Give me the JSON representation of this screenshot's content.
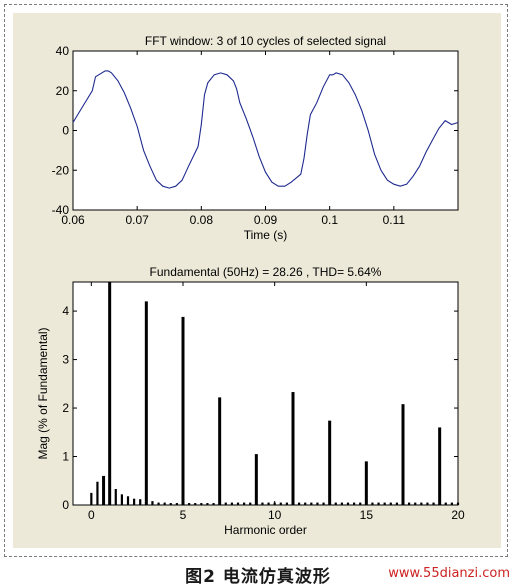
{
  "caption": "图2 电流仿真波形",
  "watermark": "www.55dianzi.com",
  "chart_data": [
    {
      "type": "line",
      "title": "FFT window: 3 of 10 cycles of selected signal",
      "xlabel": "Time (s)",
      "ylabel": "",
      "xlim": [
        0.06,
        0.12
      ],
      "ylim": [
        -40,
        40
      ],
      "xticks": [
        0.06,
        0.07,
        0.08,
        0.09,
        0.1,
        0.11
      ],
      "xtick_labels": [
        "0.06",
        "0.07",
        "0.08",
        "0.09",
        "0.1",
        "0.11"
      ],
      "yticks": [
        -40,
        -20,
        0,
        20,
        40
      ],
      "ytick_labels": [
        "-40",
        "-20",
        "0",
        "20",
        "40"
      ],
      "series": [
        {
          "color": "#1f2a8f",
          "x": [
            0.06,
            0.0615,
            0.063,
            0.0635,
            0.064,
            0.065,
            0.0655,
            0.066,
            0.067,
            0.068,
            0.069,
            0.07,
            0.0705,
            0.071,
            0.072,
            0.073,
            0.074,
            0.075,
            0.076,
            0.077,
            0.078,
            0.0795,
            0.08,
            0.0805,
            0.081,
            0.082,
            0.083,
            0.084,
            0.085,
            0.0855,
            0.086,
            0.087,
            0.088,
            0.089,
            0.09,
            0.091,
            0.092,
            0.093,
            0.094,
            0.0955,
            0.096,
            0.0965,
            0.097,
            0.098,
            0.099,
            0.1,
            0.1005,
            0.101,
            0.102,
            0.103,
            0.104,
            0.105,
            0.106,
            0.107,
            0.108,
            0.109,
            0.11,
            0.111,
            0.112,
            0.113,
            0.114,
            0.115,
            0.116,
            0.117,
            0.118,
            0.119,
            0.12
          ],
          "y": [
            4,
            12,
            20,
            27,
            28,
            30,
            30,
            29,
            25,
            19,
            11,
            2,
            -4,
            -10,
            -18,
            -25,
            -28,
            -29,
            -28,
            -25,
            -18,
            -8,
            3,
            18,
            24,
            28,
            29,
            28,
            25,
            21,
            14,
            6,
            -3,
            -13,
            -21,
            -26,
            -28,
            -28,
            -26,
            -22,
            -14,
            -2,
            8,
            14,
            22,
            28,
            28,
            29,
            28,
            24,
            18,
            10,
            0,
            -12,
            -20,
            -25,
            -27,
            -28,
            -27,
            -23,
            -18,
            -11,
            -5,
            1,
            5,
            3,
            4
          ]
        }
      ]
    },
    {
      "type": "bar",
      "title": "Fundamental (50Hz) = 28.26 , THD= 5.64%",
      "xlabel": "Harmonic order",
      "ylabel": "Mag (% of Fundamental)",
      "xlim": [
        -1,
        20
      ],
      "ylim": [
        0,
        4.6
      ],
      "xticks": [
        0,
        5,
        10,
        15,
        20
      ],
      "xtick_labels": [
        "0",
        "5",
        "10",
        "15",
        "20"
      ],
      "yticks": [
        0,
        1,
        2,
        3,
        4
      ],
      "ytick_labels": [
        "0",
        "1",
        "2",
        "3",
        "4"
      ],
      "x": [
        0,
        0.333,
        0.667,
        1,
        1.333,
        1.667,
        2,
        2.333,
        2.667,
        3,
        3.333,
        3.667,
        4,
        4.333,
        4.667,
        5,
        5.333,
        5.667,
        6,
        6.333,
        6.667,
        7,
        7.333,
        7.667,
        8,
        8.333,
        8.667,
        9,
        9.333,
        9.667,
        10,
        10.333,
        10.667,
        11,
        11.333,
        11.667,
        12,
        12.333,
        12.667,
        13,
        13.333,
        13.667,
        14,
        14.333,
        14.667,
        15,
        15.333,
        15.667,
        16,
        16.333,
        16.667,
        17,
        17.333,
        17.667,
        18,
        18.333,
        18.667,
        19,
        19.333,
        19.667,
        20
      ],
      "values": [
        0.25,
        0.48,
        0.6,
        4.6,
        0.33,
        0.22,
        0.18,
        0.13,
        0.12,
        4.2,
        0.08,
        0.05,
        0.05,
        0.04,
        0.04,
        3.88,
        0.04,
        0.04,
        0.04,
        0.04,
        0.04,
        2.22,
        0.05,
        0.05,
        0.05,
        0.05,
        0.05,
        1.05,
        0.05,
        0.05,
        0.05,
        0.05,
        0.05,
        2.33,
        0.05,
        0.05,
        0.05,
        0.05,
        0.05,
        1.74,
        0.05,
        0.05,
        0.05,
        0.05,
        0.05,
        0.9,
        0.05,
        0.05,
        0.05,
        0.05,
        0.05,
        2.08,
        0.05,
        0.05,
        0.05,
        0.05,
        0.05,
        1.6,
        0.05,
        0.05,
        0.05
      ]
    }
  ]
}
